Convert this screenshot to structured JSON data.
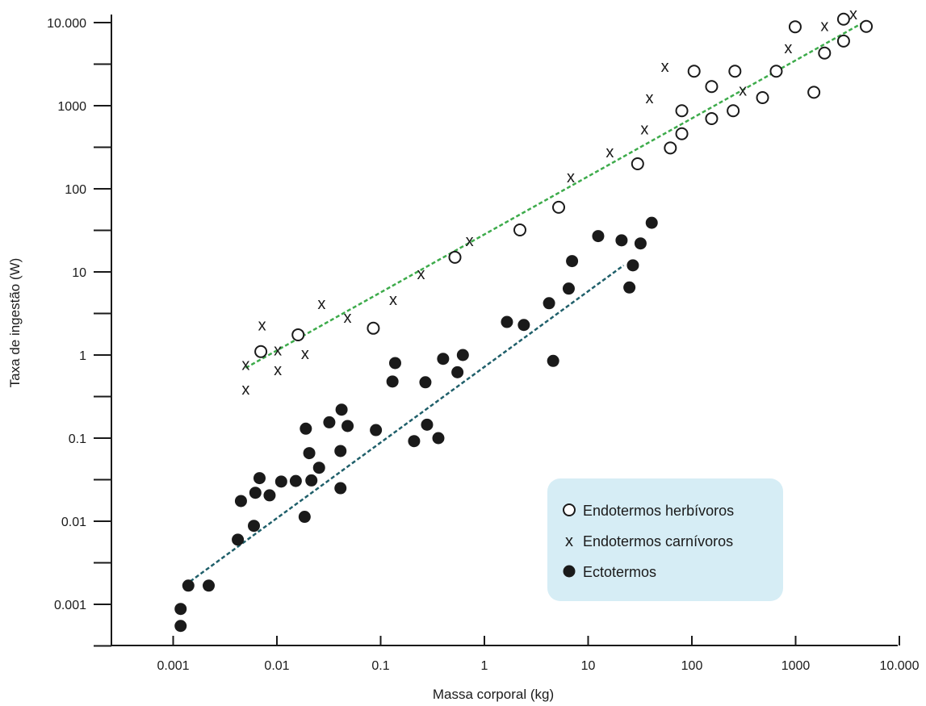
{
  "chart_data": {
    "type": "scatter",
    "title": "",
    "xlabel": "Massa corporal (kg)",
    "ylabel": "Taxa de ingestão (W)",
    "xscale": "log",
    "yscale": "log",
    "xlim": [
      0.00018,
      10000
    ],
    "ylim": [
      0.0003,
      12000
    ],
    "x_ticks": [
      {
        "value": 0.001,
        "label": "0.001"
      },
      {
        "value": 0.01,
        "label": "0.01"
      },
      {
        "value": 0.1,
        "label": "0.1"
      },
      {
        "value": 1,
        "label": "1"
      },
      {
        "value": 10,
        "label": "10"
      },
      {
        "value": 100,
        "label": "100"
      },
      {
        "value": 1000,
        "label": "1000"
      },
      {
        "value": 10000,
        "label": "10.000"
      }
    ],
    "y_ticks": [
      {
        "value": 0.001,
        "label": "0.001"
      },
      {
        "value": 0.01,
        "label": "0.01"
      },
      {
        "value": 0.1,
        "label": "0.1"
      },
      {
        "value": 1,
        "label": "1"
      },
      {
        "value": 10,
        "label": "10"
      },
      {
        "value": 100,
        "label": "100"
      },
      {
        "value": 1000,
        "label": "1000"
      },
      {
        "value": 10000,
        "label": "10.000"
      }
    ],
    "grid": false,
    "legend_position": "bottom-right",
    "series": [
      {
        "name": "Endotermos herbívoros",
        "marker": "open-circle",
        "points": [
          [
            0.007,
            1.1
          ],
          [
            0.016,
            1.75
          ],
          [
            0.085,
            2.1
          ],
          [
            0.52,
            15
          ],
          [
            2.2,
            32
          ],
          [
            5.2,
            60
          ],
          [
            30,
            200
          ],
          [
            62,
            310
          ],
          [
            80,
            460
          ],
          [
            80,
            870
          ],
          [
            155,
            700
          ],
          [
            155,
            1700
          ],
          [
            105,
            2600
          ],
          [
            250,
            870
          ],
          [
            260,
            2600
          ],
          [
            480,
            1250
          ],
          [
            650,
            2600
          ],
          [
            1500,
            1450
          ],
          [
            1900,
            4300
          ],
          [
            990,
            8900
          ],
          [
            2900,
            6000
          ],
          [
            2900,
            11000
          ],
          [
            4800,
            9000
          ]
        ]
      },
      {
        "name": "Endotermos carnívoros",
        "marker": "x",
        "points": [
          [
            0.005,
            0.77
          ],
          [
            0.005,
            0.39
          ],
          [
            0.0072,
            2.3
          ],
          [
            0.0102,
            1.15
          ],
          [
            0.0102,
            0.67
          ],
          [
            0.0187,
            1.05
          ],
          [
            0.027,
            4.2
          ],
          [
            0.048,
            2.85
          ],
          [
            0.132,
            4.7
          ],
          [
            0.245,
            9.6
          ],
          [
            0.72,
            24
          ],
          [
            6.8,
            140
          ],
          [
            16.2,
            280
          ],
          [
            35,
            530
          ],
          [
            39,
            1250
          ],
          [
            55,
            3000
          ],
          [
            310,
            1550
          ],
          [
            850,
            5000
          ],
          [
            1900,
            9200
          ],
          [
            3600,
            12800
          ]
        ]
      },
      {
        "name": "Ectotermos",
        "marker": "filled-circle",
        "points": [
          [
            0.00118,
            0.00088
          ],
          [
            0.00118,
            0.00055
          ],
          [
            0.0014,
            0.00168
          ],
          [
            0.0022,
            0.00168
          ],
          [
            0.0042,
            0.006
          ],
          [
            0.0045,
            0.0175
          ],
          [
            0.006,
            0.0088
          ],
          [
            0.0062,
            0.022
          ],
          [
            0.0068,
            0.033
          ],
          [
            0.0085,
            0.0205
          ],
          [
            0.011,
            0.03
          ],
          [
            0.0152,
            0.0305
          ],
          [
            0.0185,
            0.0113
          ],
          [
            0.019,
            0.13
          ],
          [
            0.0205,
            0.066
          ],
          [
            0.0215,
            0.031
          ],
          [
            0.0255,
            0.044
          ],
          [
            0.032,
            0.155
          ],
          [
            0.041,
            0.025
          ],
          [
            0.041,
            0.07
          ],
          [
            0.042,
            0.22
          ],
          [
            0.048,
            0.14
          ],
          [
            0.09,
            0.125
          ],
          [
            0.13,
            0.48
          ],
          [
            0.138,
            0.8
          ],
          [
            0.21,
            0.092
          ],
          [
            0.27,
            0.47
          ],
          [
            0.28,
            0.145
          ],
          [
            0.36,
            0.1
          ],
          [
            0.4,
            0.9
          ],
          [
            0.55,
            0.62
          ],
          [
            0.62,
            1.0
          ],
          [
            1.65,
            2.5
          ],
          [
            2.4,
            2.3
          ],
          [
            4.2,
            4.2
          ],
          [
            4.6,
            0.85
          ],
          [
            6.5,
            6.3
          ],
          [
            7.0,
            13.5
          ],
          [
            12.5,
            27
          ],
          [
            21,
            24
          ],
          [
            25,
            6.5
          ],
          [
            27,
            12
          ],
          [
            32,
            22
          ],
          [
            41,
            39
          ]
        ]
      }
    ],
    "trend_lines": [
      {
        "for": "Endotermos",
        "color": "#3dab4b",
        "from": [
          0.005,
          0.7
        ],
        "to": [
          4800,
          10500
        ]
      },
      {
        "for": "Ectotermos",
        "color": "#1f5f6a",
        "from": [
          0.0013,
          0.0017
        ],
        "to": [
          22,
          12
        ]
      }
    ],
    "legend_box_color": "#d6edf5"
  }
}
